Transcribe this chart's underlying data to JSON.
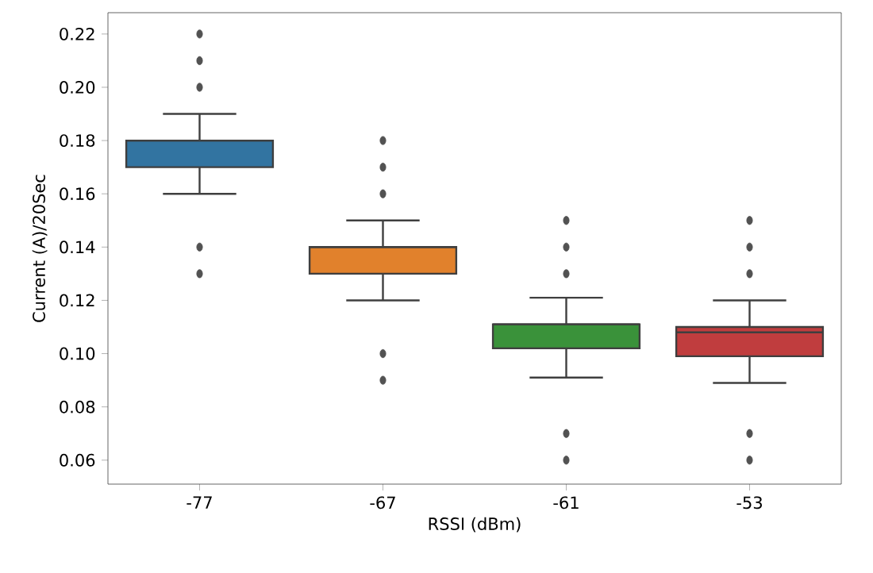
{
  "chart_data": {
    "type": "box",
    "xlabel": "RSSI (dBm)",
    "ylabel": "Current (A)/20Sec",
    "categories": [
      "-77",
      "-67",
      "-61",
      "-53"
    ],
    "colors": [
      "#3274a1",
      "#e1812c",
      "#3a923a",
      "#c03d3e"
    ],
    "boxes": [
      {
        "low": 0.16,
        "q1": 0.17,
        "median": 0.18,
        "q3": 0.18,
        "high": 0.19,
        "outliers": [
          0.13,
          0.14,
          0.2,
          0.21,
          0.22
        ]
      },
      {
        "low": 0.12,
        "q1": 0.13,
        "median": 0.14,
        "q3": 0.14,
        "high": 0.15,
        "outliers": [
          0.09,
          0.1,
          0.16,
          0.17,
          0.18
        ]
      },
      {
        "low": 0.091,
        "q1": 0.102,
        "median": 0.111,
        "q3": 0.111,
        "high": 0.121,
        "outliers": [
          0.06,
          0.07,
          0.13,
          0.14,
          0.15
        ]
      },
      {
        "low": 0.089,
        "q1": 0.099,
        "median": 0.108,
        "q3": 0.11,
        "high": 0.12,
        "outliers": [
          0.06,
          0.07,
          0.13,
          0.14,
          0.15
        ]
      }
    ],
    "ylim": [
      0.051,
      0.228
    ],
    "yticks": [
      {
        "value": 0.06,
        "label": "0.06"
      },
      {
        "value": 0.08,
        "label": "0.08"
      },
      {
        "value": 0.1,
        "label": "0.10"
      },
      {
        "value": 0.12,
        "label": "0.12"
      },
      {
        "value": 0.14,
        "label": "0.14"
      },
      {
        "value": 0.16,
        "label": "0.16"
      },
      {
        "value": 0.18,
        "label": "0.18"
      },
      {
        "value": 0.2,
        "label": "0.20"
      },
      {
        "value": 0.22,
        "label": "0.22"
      }
    ]
  }
}
